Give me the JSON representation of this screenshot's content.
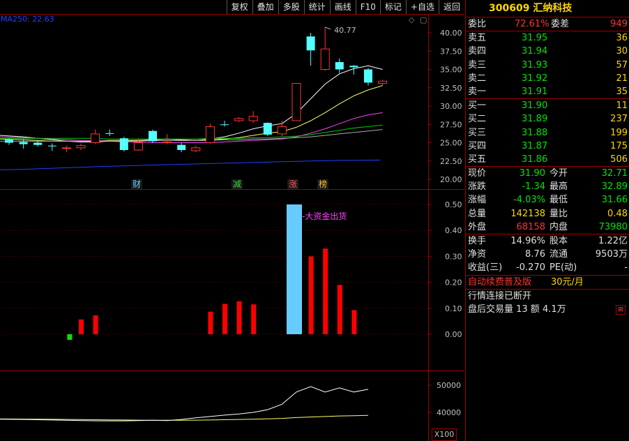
{
  "toolbar": [
    "复权",
    "叠加",
    "多股",
    "统计",
    "画线",
    "F10",
    "标记",
    "+自选",
    "返回"
  ],
  "ma_label": "MA250: 22.63",
  "main_chart": {
    "price_ticks": [
      "40.00",
      "37.50",
      "35.00",
      "32.50",
      "30.00",
      "27.50",
      "25.00",
      "22.50",
      "20.00"
    ],
    "high_label": "40.77",
    "event_marks": [
      "财",
      "减",
      "涨",
      "榜"
    ],
    "candles": [
      {
        "o": 25.0,
        "c": 25.4,
        "h": 25.6,
        "l": 24.7,
        "up": false
      },
      {
        "o": 25.1,
        "c": 24.8,
        "h": 25.5,
        "l": 24.2,
        "up": false
      },
      {
        "o": 25.0,
        "c": 24.7,
        "h": 25.3,
        "l": 24.5,
        "up": false
      },
      {
        "o": 24.6,
        "c": 24.5,
        "h": 24.9,
        "l": 23.9,
        "up": false
      },
      {
        "o": 24.2,
        "c": 24.3,
        "h": 24.6,
        "l": 23.7,
        "up": true
      },
      {
        "o": 24.3,
        "c": 24.6,
        "h": 24.9,
        "l": 24.0,
        "up": true
      },
      {
        "o": 25.0,
        "c": 26.2,
        "h": 26.8,
        "l": 24.8,
        "up": true
      },
      {
        "o": 26.2,
        "c": 26.3,
        "h": 26.8,
        "l": 25.9,
        "up": false
      },
      {
        "o": 25.6,
        "c": 24.0,
        "h": 25.8,
        "l": 23.8,
        "up": false
      },
      {
        "o": 24.0,
        "c": 25.0,
        "h": 25.6,
        "l": 23.9,
        "up": true
      },
      {
        "o": 26.6,
        "c": 25.2,
        "h": 26.8,
        "l": 25.0,
        "up": false
      },
      {
        "o": 25.0,
        "c": 25.1,
        "h": 26.2,
        "l": 24.8,
        "up": true
      },
      {
        "o": 24.7,
        "c": 24.0,
        "h": 25.0,
        "l": 23.7,
        "up": false
      },
      {
        "o": 23.9,
        "c": 24.3,
        "h": 24.6,
        "l": 23.7,
        "up": true
      },
      {
        "o": 25.0,
        "c": 27.2,
        "h": 27.6,
        "l": 24.8,
        "up": true
      },
      {
        "o": 27.5,
        "c": 27.5,
        "h": 28.0,
        "l": 27.2,
        "up": false
      },
      {
        "o": 28.0,
        "c": 28.3,
        "h": 28.5,
        "l": 27.8,
        "up": true
      },
      {
        "o": 28.0,
        "c": 28.6,
        "h": 29.3,
        "l": 27.7,
        "up": true
      },
      {
        "o": 27.7,
        "c": 26.1,
        "h": 27.8,
        "l": 25.9,
        "up": false
      },
      {
        "o": 26.2,
        "c": 27.2,
        "h": 28.0,
        "l": 25.9,
        "up": true
      },
      {
        "o": 28.0,
        "c": 33.1,
        "h": 33.1,
        "l": 28.0,
        "up": true
      },
      {
        "o": 37.6,
        "c": 39.5,
        "h": 40.0,
        "l": 35.5,
        "up": false
      },
      {
        "o": 35.0,
        "c": 37.8,
        "h": 40.77,
        "l": 34.8,
        "up": true
      },
      {
        "o": 35.0,
        "c": 36.0,
        "h": 36.5,
        "l": 34.5,
        "up": false
      },
      {
        "o": 35.5,
        "c": 35.3,
        "h": 35.6,
        "l": 34.3,
        "up": false
      },
      {
        "o": 35.0,
        "c": 33.2,
        "h": 35.2,
        "l": 32.8,
        "up": false
      },
      {
        "o": 33.4,
        "c": 33.1,
        "h": 33.6,
        "l": 32.8,
        "up": true
      }
    ],
    "ma_lines": [
      {
        "color": "#ffffff",
        "values": [
          26.0,
          25.8,
          25.6,
          25.4,
          25.2,
          25.1,
          25.1,
          25.2,
          25.2,
          25.3,
          25.4,
          25.5,
          25.4,
          25.3,
          25.5,
          25.8,
          26.3,
          26.9,
          27.3,
          27.6,
          29.0,
          31.0,
          33.0,
          34.4,
          35.1,
          35.5,
          35.0
        ]
      },
      {
        "color": "#ffff66",
        "values": [
          25.5,
          25.4,
          25.3,
          25.2,
          25.2,
          25.2,
          25.2,
          25.3,
          25.3,
          25.3,
          25.3,
          25.3,
          25.3,
          25.3,
          25.4,
          25.5,
          25.7,
          26.0,
          26.3,
          26.5,
          27.1,
          28.0,
          29.1,
          30.3,
          31.4,
          32.2,
          32.8
        ]
      },
      {
        "color": "#ff44ff",
        "values": [
          25.8,
          25.7,
          25.6,
          25.5,
          25.4,
          25.3,
          25.3,
          25.2,
          25.1,
          25.1,
          25.0,
          25.0,
          25.0,
          25.0,
          25.0,
          25.1,
          25.2,
          25.3,
          25.4,
          25.5,
          25.8,
          26.3,
          26.9,
          27.6,
          28.3,
          28.8,
          29.1
        ]
      },
      {
        "color": "#00cc00",
        "values": [
          25.6,
          25.6,
          25.6,
          25.6,
          25.6,
          25.6,
          25.6,
          25.5,
          25.5,
          25.5,
          25.5,
          25.5,
          25.5,
          25.5,
          25.6,
          25.6,
          25.6,
          25.7,
          25.7,
          25.8,
          25.9,
          26.1,
          26.4,
          26.7,
          27.0,
          27.2,
          27.4
        ]
      },
      {
        "color": "#aaaaaa",
        "values": [
          25.2,
          25.2,
          25.2,
          25.2,
          25.2,
          25.2,
          25.2,
          25.2,
          25.2,
          25.2,
          25.3,
          25.3,
          25.3,
          25.3,
          25.3,
          25.4,
          25.4,
          25.5,
          25.5,
          25.6,
          25.7,
          25.8,
          26.0,
          26.2,
          26.4,
          26.6,
          26.8
        ]
      },
      {
        "color": "#2040ff",
        "values": [
          21.3,
          21.37,
          21.44,
          21.51,
          21.58,
          21.65,
          21.72,
          21.78,
          21.84,
          21.9,
          21.95,
          22.0,
          22.05,
          22.1,
          22.15,
          22.2,
          22.25,
          22.3,
          22.35,
          22.4,
          22.45,
          22.5,
          22.55,
          22.58,
          22.6,
          22.62,
          22.63
        ]
      }
    ]
  },
  "indicator": {
    "ticks": [
      "0.50",
      "0.40",
      "0.30",
      "0.20",
      "0.10",
      "0.00"
    ],
    "annotation": "大资金出货",
    "bars": [
      {
        "idx": 5,
        "v": 0.057,
        "color": "#ff0000"
      },
      {
        "idx": 6,
        "v": 0.073,
        "color": "#ff0000"
      },
      {
        "idx": 14,
        "v": 0.087,
        "color": "#ff0000"
      },
      {
        "idx": 15,
        "v": 0.117,
        "color": "#ff0000"
      },
      {
        "idx": 16,
        "v": 0.127,
        "color": "#ff0000"
      },
      {
        "idx": 17,
        "v": 0.115,
        "color": "#ff0000"
      },
      {
        "idx": 21,
        "v": 0.3,
        "color": "#ff0000"
      },
      {
        "idx": 22,
        "v": 0.33,
        "color": "#ff0000"
      },
      {
        "idx": 23,
        "v": 0.19,
        "color": "#ff0000"
      },
      {
        "idx": 24,
        "v": 0.093,
        "color": "#ff0000"
      }
    ],
    "big_bar": {
      "v": 0.5,
      "color": "#66ccff"
    },
    "green_mark": {
      "idx": 4
    }
  },
  "volume_pane": {
    "ticks": [
      "50000",
      "40000"
    ],
    "x100_label": "X100",
    "white_line": [
      37500,
      37400,
      37300,
      37200,
      37100,
      37000,
      36900,
      36900,
      36900,
      37000,
      37100,
      37000,
      37400,
      38000,
      38500,
      39000,
      39400,
      40000,
      41000,
      43000,
      47500,
      49500,
      47500,
      49000,
      47500,
      48500
    ],
    "yellow_line": [
      37600,
      37550,
      37500,
      37450,
      37400,
      37350,
      37300,
      37250,
      37200,
      37150,
      37100,
      37100,
      37100,
      37150,
      37200,
      37300,
      37400,
      37500,
      37650,
      37800,
      38100,
      38300,
      38500,
      38700,
      38800,
      38900
    ]
  },
  "quote": {
    "code": "300609",
    "name": "汇纳科技",
    "wei_bi_label": "委比",
    "wei_bi": "72.61%",
    "wei_cha_label": "委差",
    "wei_cha": "949",
    "asks": [
      {
        "label": "卖五",
        "price": "31.95",
        "vol": "36"
      },
      {
        "label": "卖四",
        "price": "31.94",
        "vol": "30"
      },
      {
        "label": "卖三",
        "price": "31.93",
        "vol": "57"
      },
      {
        "label": "卖二",
        "price": "31.92",
        "vol": "21"
      },
      {
        "label": "卖一",
        "price": "31.91",
        "vol": "35"
      }
    ],
    "bids": [
      {
        "label": "买一",
        "price": "31.90",
        "vol": "11"
      },
      {
        "label": "买二",
        "price": "31.89",
        "vol": "237"
      },
      {
        "label": "买三",
        "price": "31.88",
        "vol": "199"
      },
      {
        "label": "买四",
        "price": "31.87",
        "vol": "175"
      },
      {
        "label": "买五",
        "price": "31.86",
        "vol": "506"
      }
    ],
    "stats": [
      {
        "l1": "现价",
        "v1": "31.90",
        "c1": "green",
        "l2": "今开",
        "v2": "32.71",
        "c2": "green"
      },
      {
        "l1": "涨跌",
        "v1": "-1.34",
        "c1": "green",
        "l2": "最高",
        "v2": "32.89",
        "c2": "green"
      },
      {
        "l1": "涨幅",
        "v1": "-4.03%",
        "c1": "green",
        "l2": "最低",
        "v2": "31.66",
        "c2": "green"
      },
      {
        "l1": "总量",
        "v1": "142138",
        "c1": "yellow",
        "l2": "量比",
        "v2": "0.48",
        "c2": "yellow"
      },
      {
        "l1": "外盘",
        "v1": "68158",
        "c1": "red",
        "l2": "内盘",
        "v2": "73980",
        "c2": "green"
      }
    ],
    "stats2": [
      {
        "l1": "换手",
        "v1": "14.96%",
        "l2": "股本",
        "v2": "1.22亿"
      },
      {
        "l1": "净资",
        "v1": "8.76",
        "l2": "流通",
        "v2": "9503万"
      },
      {
        "l1": "收益(三)",
        "v1": "-0.270",
        "l2": "PE(动)",
        "v2": "-"
      }
    ],
    "promo": "自动续费普及版",
    "promo_price": "30元/月",
    "status1": "行情连接已断开",
    "status2": "盘后交易量 13 额 4.1万"
  }
}
